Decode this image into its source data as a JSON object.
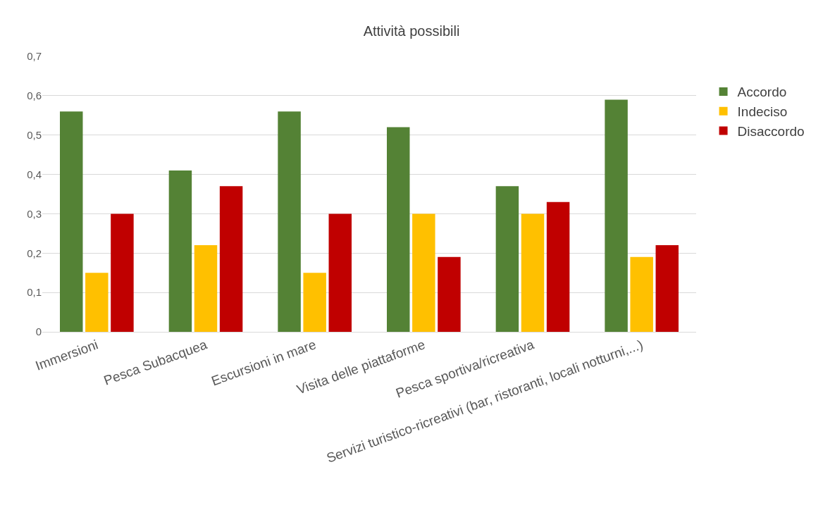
{
  "chart_data": {
    "type": "bar",
    "title": "Attività possibili",
    "categories": [
      "Immersioni",
      "Pesca Subacquea",
      "Escursioni in mare",
      "Visita delle piattaforme",
      "Pesca sportiva/ricreativa",
      "Servizi turistico-ricreativi (bar, ristoranti, locali notturni,...)"
    ],
    "series": [
      {
        "name": "Accordo",
        "color": "#548235",
        "values": [
          0.56,
          0.41,
          0.56,
          0.52,
          0.37,
          0.59
        ]
      },
      {
        "name": "Indeciso",
        "color": "#ffc000",
        "values": [
          0.15,
          0.22,
          0.15,
          0.3,
          0.3,
          0.19
        ]
      },
      {
        "name": "Disaccordo",
        "color": "#c00000",
        "values": [
          0.3,
          0.37,
          0.3,
          0.19,
          0.33,
          0.22
        ]
      }
    ],
    "ylim": [
      0,
      0.7
    ],
    "yticks": [
      0,
      {
        "value": 0.1,
        "label": "0,1"
      },
      {
        "value": 0.2,
        "label": "0,2"
      },
      {
        "value": 0.3,
        "label": "0,3"
      },
      {
        "value": 0.4,
        "label": "0,4"
      },
      {
        "value": 0.5,
        "label": "0,5"
      },
      {
        "value": 0.6,
        "label": "0,6"
      },
      {
        "value": 0.7,
        "label": "0,7"
      }
    ],
    "grid": "y",
    "legend": "right"
  }
}
